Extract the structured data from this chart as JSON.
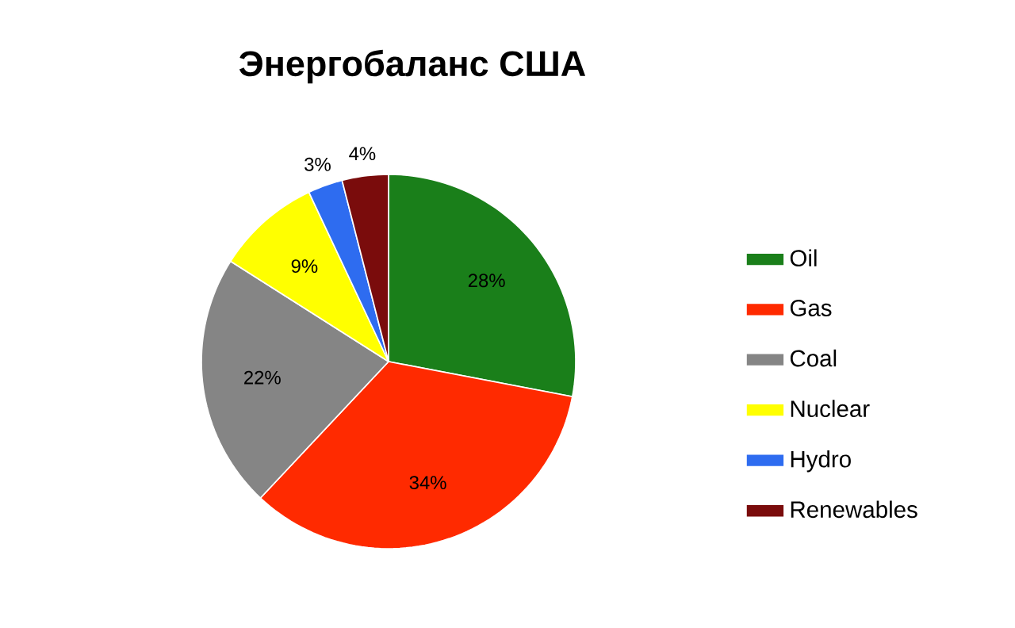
{
  "chart_data": {
    "type": "pie",
    "title": "Энергобаланс США",
    "categories": [
      "Oil",
      "Gas",
      "Coal",
      "Nuclear",
      "Hydro",
      "Renewables"
    ],
    "values": [
      28,
      34,
      22,
      9,
      3,
      4
    ],
    "value_labels": [
      "28%",
      "34%",
      "22%",
      "9%",
      "3%",
      "4%"
    ],
    "colors": [
      "#1a7f1a",
      "#ff2a00",
      "#858585",
      "#ffff00",
      "#2e6cf0",
      "#7a0c0c"
    ],
    "legend": "right"
  }
}
